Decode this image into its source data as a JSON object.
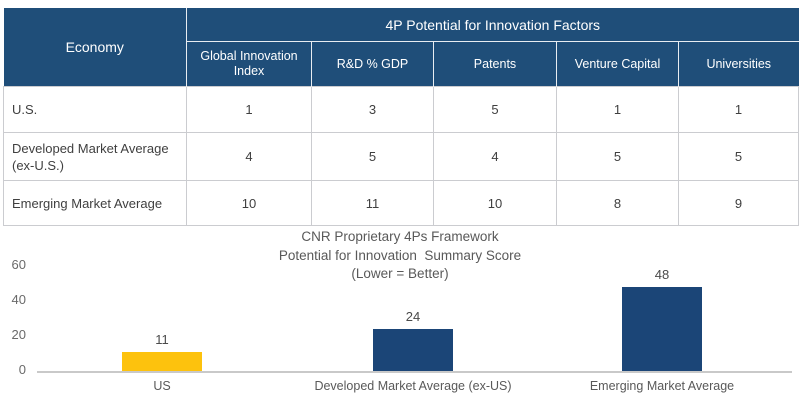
{
  "table": {
    "economy_header": "Economy",
    "group_header": "4P Potential for Innovation Factors",
    "columns": [
      "Global Innovation Index",
      "R&D % GDP",
      "Patents",
      "Venture Capital",
      "Universities"
    ],
    "rows": [
      {
        "economy": "U.S.",
        "values": [
          "1",
          "3",
          "5",
          "1",
          "1"
        ]
      },
      {
        "economy": "Developed Market Average (ex-U.S.)",
        "values": [
          "4",
          "5",
          "4",
          "5",
          "5"
        ]
      },
      {
        "economy": "Emerging Market Average",
        "values": [
          "10",
          "11",
          "10",
          "8",
          "9"
        ]
      }
    ]
  },
  "chart_data": {
    "type": "bar",
    "title": "CNR Proprietary 4Ps Framework Potential for Innovation Summary Score (Lower = Better)",
    "title_lines": [
      "CNR Proprietary 4Ps Framework",
      "Potential for Innovation  Summary Score",
      "(Lower = Better)"
    ],
    "categories": [
      "US",
      "Developed Market Average (ex-US)",
      "Emerging Market Average"
    ],
    "values": [
      11,
      24,
      48
    ],
    "bar_colors": [
      "#FDC20D",
      "#1B4577",
      "#1B4577"
    ],
    "y_ticks": [
      0,
      20,
      40,
      60
    ],
    "ylim": [
      0,
      68
    ],
    "grid": false,
    "legend": false,
    "xlabel": "",
    "ylabel": ""
  },
  "colors": {
    "header_blue": "#1F4E79",
    "bar_blue": "#1B4577",
    "bar_yellow": "#FDC20D",
    "alt_row": "#F2F3F5",
    "body_border": "#CBCCD0",
    "axis_line": "#C9C9C9",
    "gray_text": "#595959"
  }
}
